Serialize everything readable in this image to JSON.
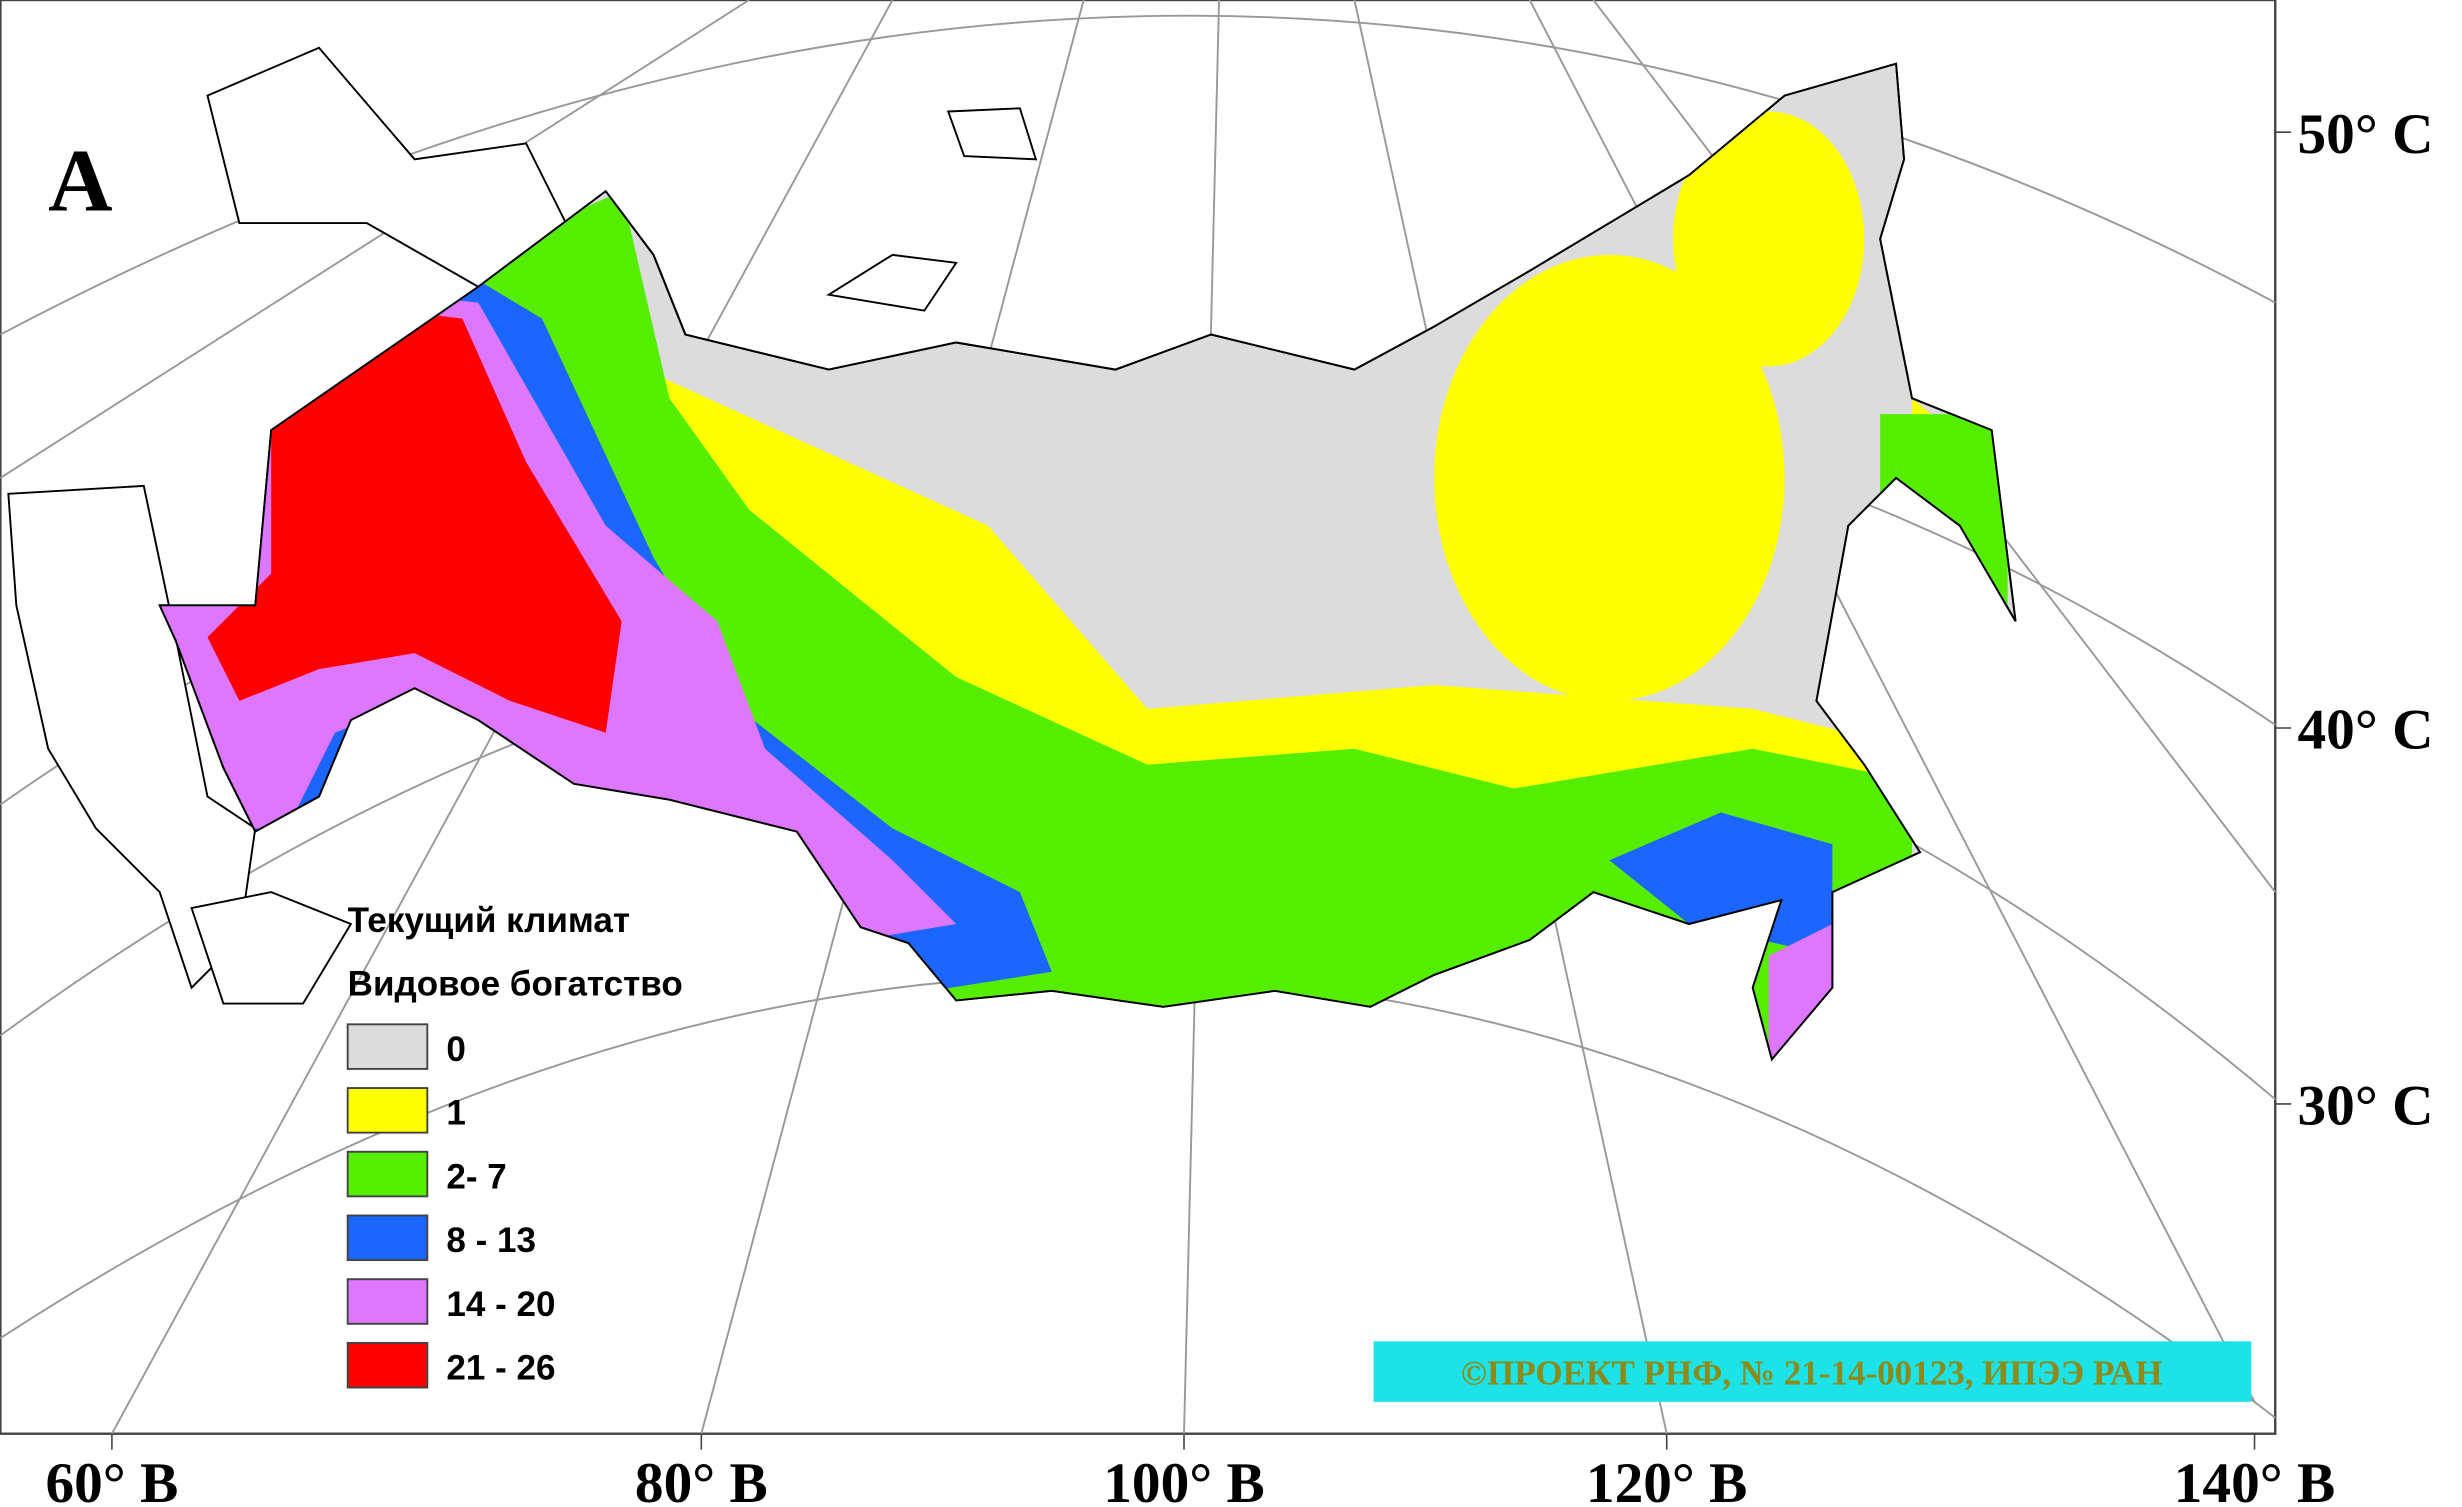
{
  "panel_label": "A",
  "legend": {
    "title": "Текущий климат",
    "subtitle": "Видовое богатство",
    "items": [
      {
        "label": "0",
        "color": "#dcdcdc"
      },
      {
        "label": "1",
        "color": "#ffff00"
      },
      {
        "label": "2- 7",
        "color": "#55ee00"
      },
      {
        "label": "8  - 13",
        "color": "#1a66ff"
      },
      {
        "label": "14 - 20",
        "color": "#dd77ff"
      },
      {
        "label": "21 - 26",
        "color": "#ff0000"
      }
    ]
  },
  "longitude_labels": [
    "60° В",
    "80° В",
    "100° В",
    "120° В",
    "140° В"
  ],
  "latitude_labels": [
    "50° С",
    "40° С",
    "30° С"
  ],
  "credit": "©ПРОЕКТ РНФ, № 21-14-00123, ИПЭЭ РАН"
}
